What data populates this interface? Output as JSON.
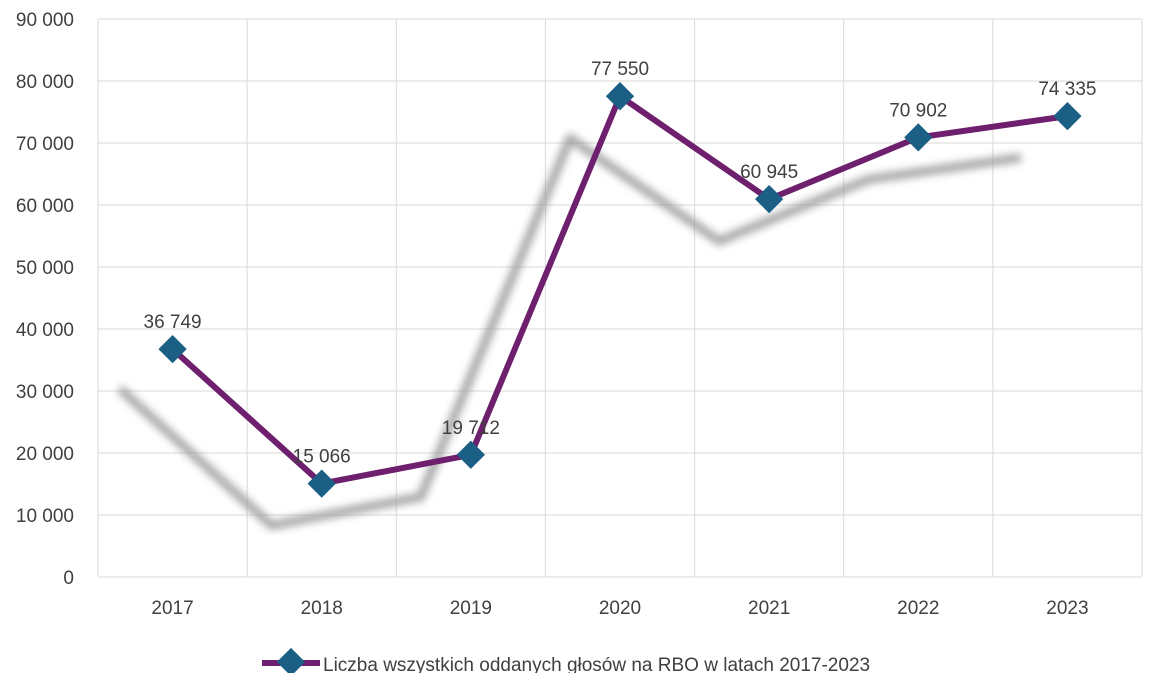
{
  "chart_data": {
    "type": "line",
    "categories": [
      "2017",
      "2018",
      "2019",
      "2020",
      "2021",
      "2022",
      "2023"
    ],
    "series": [
      {
        "name": "Liczba wszystkich oddanych głosów na RBO w latach 2017-2023",
        "values": [
          36749,
          15066,
          19712,
          77550,
          60945,
          70902,
          74335
        ],
        "labels": [
          "36 749",
          "15 066",
          "19 712",
          "77 550",
          "60 945",
          "70 902",
          "74 335"
        ]
      }
    ],
    "y_ticks": [
      "0",
      "10 000",
      "20 000",
      "30 000",
      "40 000",
      "50 000",
      "60 000",
      "70 000",
      "80 000",
      "90 000"
    ],
    "ylim": [
      0,
      90000
    ],
    "title": "",
    "xlabel": "",
    "ylabel": "",
    "grid": true,
    "legend": "bottom",
    "colors": {
      "line": "#6E1F6E",
      "marker": "#1B5F84",
      "grid": "#D9D9D9",
      "text": "#404040",
      "shadow": "#9A9A9A"
    }
  }
}
